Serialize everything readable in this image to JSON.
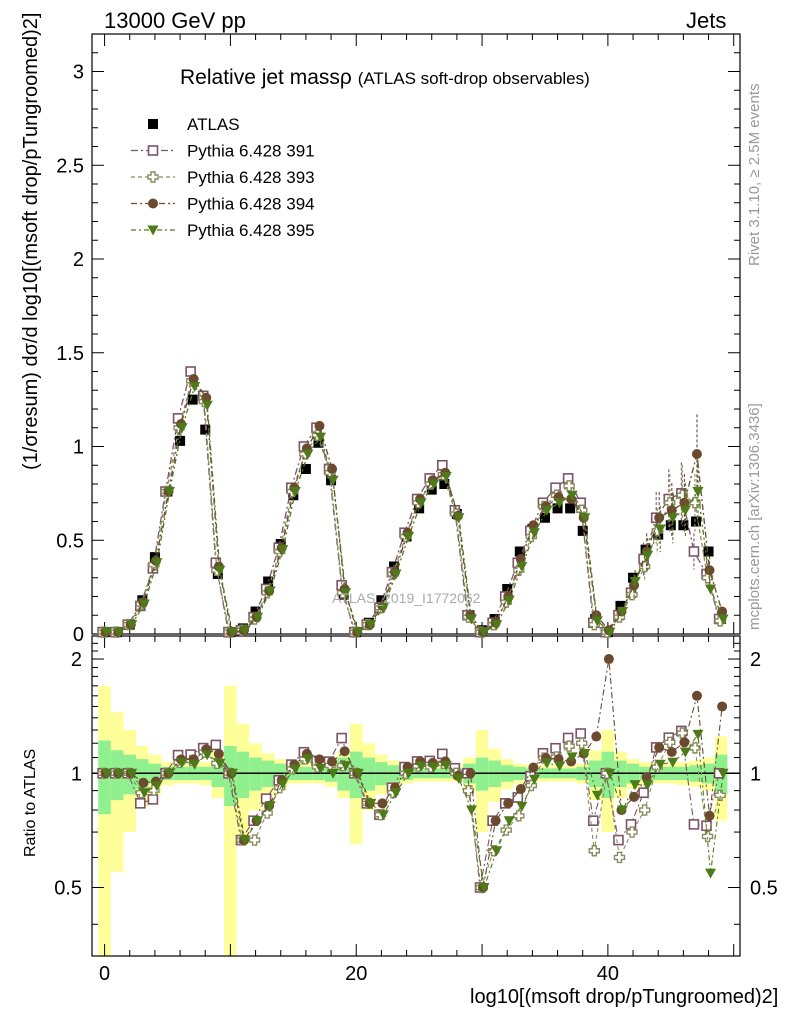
{
  "header": {
    "left": "13000 GeV pp",
    "right": "Jets"
  },
  "title_main": "Relative jet massρ",
  "title_sub": "(ATLAS soft-drop observables)",
  "side_text_top": "Rivet 3.1.10, ≥ 2.5M events",
  "side_text_bottom": "mcplots.cern.ch [arXiv:1306.3436]",
  "watermark": "ATLAS_2019_I1772062",
  "ylabel_main": "(1/σresum) dσ/d log10[(msoft drop/pTungroomed)2]",
  "ylabel_ratio": "Ratio to ATLAS",
  "xlabel": "log10[(msoft drop/pTungroomed)2]",
  "colors": {
    "data": "#000000",
    "mc391": "#7b5468",
    "mc393": "#8b8b5f",
    "mc394": "#6b4a30",
    "mc395": "#4e7a1a",
    "band_inner": "#90f090",
    "band_outer": "#ffff99"
  },
  "chart_data": {
    "type": "scatter",
    "x_range": [
      -1,
      50.5
    ],
    "main_ylim": [
      0,
      3.2
    ],
    "ratio_ylim": [
      0.33,
      2.3
    ],
    "x_ticks": [
      "0",
      "20",
      "40"
    ],
    "main_y_ticks": [
      "0",
      "0.5",
      "1",
      "1.5",
      "2",
      "2.5",
      "3"
    ],
    "ratio_y_ticks": [
      "0.5",
      "1",
      "2"
    ],
    "legend_position": "top-left",
    "x": [
      0,
      1,
      2,
      3,
      4,
      5,
      6,
      7,
      8,
      9,
      10,
      11,
      12,
      13,
      14,
      15,
      16,
      17,
      18,
      19,
      20,
      21,
      22,
      23,
      24,
      25,
      26,
      27,
      28,
      29,
      30,
      31,
      32,
      33,
      34,
      35,
      36,
      37,
      38,
      39,
      40,
      41,
      42,
      43,
      44,
      45,
      46,
      47,
      48,
      49
    ],
    "series": [
      {
        "name": "ATLAS",
        "marker": "filled-square",
        "values": [
          0.01,
          0.01,
          0.05,
          0.18,
          0.41,
          0.76,
          1.03,
          1.25,
          1.09,
          0.32,
          0.01,
          0.03,
          0.12,
          0.28,
          0.48,
          0.74,
          0.88,
          1.02,
          0.82,
          0.21,
          0.01,
          0.06,
          0.18,
          0.36,
          0.52,
          0.67,
          0.77,
          0.8,
          0.64,
          0.1,
          0.02,
          0.08,
          0.24,
          0.44,
          0.56,
          0.62,
          0.67,
          0.67,
          0.55,
          0.08,
          0.01,
          0.15,
          0.3,
          0.45,
          0.53,
          0.58,
          0.58,
          0.6,
          0.44,
          0.08
        ]
      },
      {
        "name": "Pythia 6.428 391",
        "marker": "open-square",
        "values": [
          0.01,
          0.01,
          0.05,
          0.15,
          0.35,
          0.76,
          1.15,
          1.4,
          1.27,
          0.38,
          0.01,
          0.02,
          0.09,
          0.24,
          0.46,
          0.78,
          1.0,
          1.1,
          0.88,
          0.26,
          0.01,
          0.05,
          0.14,
          0.33,
          0.54,
          0.72,
          0.83,
          0.9,
          0.66,
          0.1,
          0.01,
          0.06,
          0.2,
          0.38,
          0.55,
          0.7,
          0.78,
          0.83,
          0.7,
          0.06,
          0.01,
          0.1,
          0.22,
          0.4,
          0.62,
          0.72,
          0.75,
          0.44,
          0.32,
          0.08
        ]
      },
      {
        "name": "Pythia 6.428 393",
        "marker": "open-cross",
        "values": [
          0.01,
          0.01,
          0.05,
          0.16,
          0.37,
          0.76,
          1.1,
          1.35,
          1.24,
          0.34,
          0.01,
          0.02,
          0.08,
          0.22,
          0.44,
          0.76,
          0.96,
          1.06,
          0.86,
          0.22,
          0.01,
          0.05,
          0.14,
          0.32,
          0.52,
          0.7,
          0.8,
          0.85,
          0.64,
          0.09,
          0.01,
          0.05,
          0.17,
          0.34,
          0.52,
          0.68,
          0.74,
          0.79,
          0.66,
          0.05,
          0.01,
          0.09,
          0.21,
          0.36,
          0.55,
          0.7,
          0.74,
          0.7,
          0.3,
          0.07
        ]
      },
      {
        "name": "Pythia 6.428 394",
        "marker": "filled-circle",
        "values": [
          0.01,
          0.01,
          0.05,
          0.17,
          0.39,
          0.76,
          1.12,
          1.36,
          1.26,
          0.36,
          0.01,
          0.02,
          0.09,
          0.23,
          0.46,
          0.78,
          0.99,
          1.11,
          0.88,
          0.24,
          0.01,
          0.05,
          0.15,
          0.33,
          0.54,
          0.72,
          0.82,
          0.86,
          0.63,
          0.1,
          0.01,
          0.06,
          0.2,
          0.4,
          0.58,
          0.68,
          0.73,
          0.72,
          0.62,
          0.1,
          0.02,
          0.12,
          0.26,
          0.44,
          0.62,
          0.66,
          0.7,
          0.96,
          0.34,
          0.12
        ]
      },
      {
        "name": "Pythia 6.428 395",
        "marker": "filled-triangle-down",
        "values": [
          0.01,
          0.01,
          0.05,
          0.16,
          0.38,
          0.76,
          1.1,
          1.32,
          1.22,
          0.34,
          0.01,
          0.02,
          0.09,
          0.23,
          0.45,
          0.76,
          0.96,
          1.05,
          0.82,
          0.22,
          0.01,
          0.05,
          0.14,
          0.32,
          0.52,
          0.7,
          0.8,
          0.84,
          0.62,
          0.08,
          0.01,
          0.05,
          0.18,
          0.36,
          0.54,
          0.66,
          0.7,
          0.74,
          0.62,
          0.07,
          0.01,
          0.12,
          0.28,
          0.42,
          0.56,
          0.62,
          0.66,
          0.76,
          0.24,
          0.08
        ]
      }
    ],
    "ratio": {
      "band_inner": [
        0.22,
        0.15,
        0.12,
        0.09,
        0.06,
        0.04,
        0.04,
        0.04,
        0.04,
        0.08,
        0.18,
        0.14,
        0.1,
        0.08,
        0.06,
        0.04,
        0.04,
        0.04,
        0.05,
        0.1,
        0.14,
        0.1,
        0.07,
        0.05,
        0.04,
        0.03,
        0.03,
        0.03,
        0.03,
        0.06,
        0.1,
        0.08,
        0.05,
        0.04,
        0.03,
        0.03,
        0.03,
        0.03,
        0.04,
        0.08,
        0.14,
        0.08,
        0.06,
        0.04,
        0.04,
        0.04,
        0.04,
        0.05,
        0.06,
        0.12
      ],
      "band_outer": [
        0.7,
        0.45,
        0.3,
        0.18,
        0.12,
        0.07,
        0.06,
        0.06,
        0.07,
        0.14,
        0.7,
        0.35,
        0.2,
        0.13,
        0.09,
        0.06,
        0.06,
        0.06,
        0.08,
        0.14,
        0.35,
        0.2,
        0.12,
        0.08,
        0.06,
        0.05,
        0.05,
        0.05,
        0.05,
        0.1,
        0.3,
        0.16,
        0.09,
        0.06,
        0.05,
        0.05,
        0.05,
        0.05,
        0.06,
        0.15,
        0.3,
        0.14,
        0.09,
        0.07,
        0.06,
        0.06,
        0.07,
        0.08,
        0.1,
        0.25
      ]
    }
  }
}
